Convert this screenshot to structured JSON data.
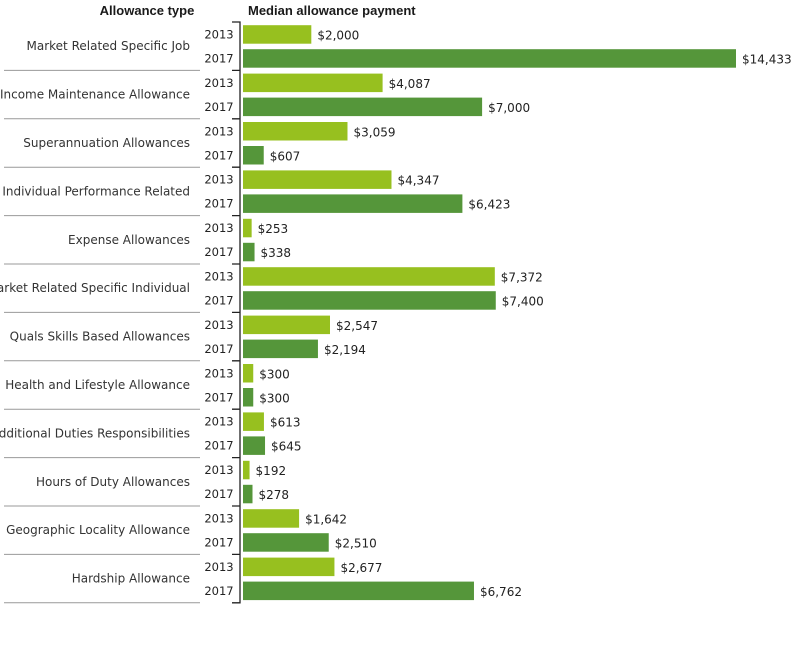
{
  "chart_data": {
    "type": "bar",
    "orientation": "horizontal",
    "header_category": "Allowance type",
    "header_value": "Median allowance payment",
    "xlim": [
      0,
      14433
    ],
    "grid": false,
    "legend": "none",
    "value_prefix": "$",
    "colors": {
      "2013": "#97c01f",
      "2017": "#55963a"
    },
    "series_order": [
      "2013",
      "2017"
    ],
    "categories": [
      "Market Related Specific Job",
      "Income Maintenance Allowance",
      "Superannuation Allowances",
      "Individual Performance Related",
      "Expense Allowances",
      "Market Related Specific Individual",
      "Quals Skills Based Allowances",
      "Health and Lifestyle Allowance",
      "Additional Duties Responsibilities",
      "Hours of Duty Allowances",
      "Geographic Locality Allowance",
      "Hardship Allowance"
    ],
    "series": [
      {
        "name": "2013",
        "values": [
          2000,
          4087,
          3059,
          4347,
          253,
          7372,
          2547,
          300,
          613,
          192,
          1642,
          2677
        ]
      },
      {
        "name": "2017",
        "values": [
          14433,
          7000,
          607,
          6423,
          338,
          7400,
          2194,
          300,
          645,
          278,
          2510,
          6762
        ]
      }
    ]
  }
}
